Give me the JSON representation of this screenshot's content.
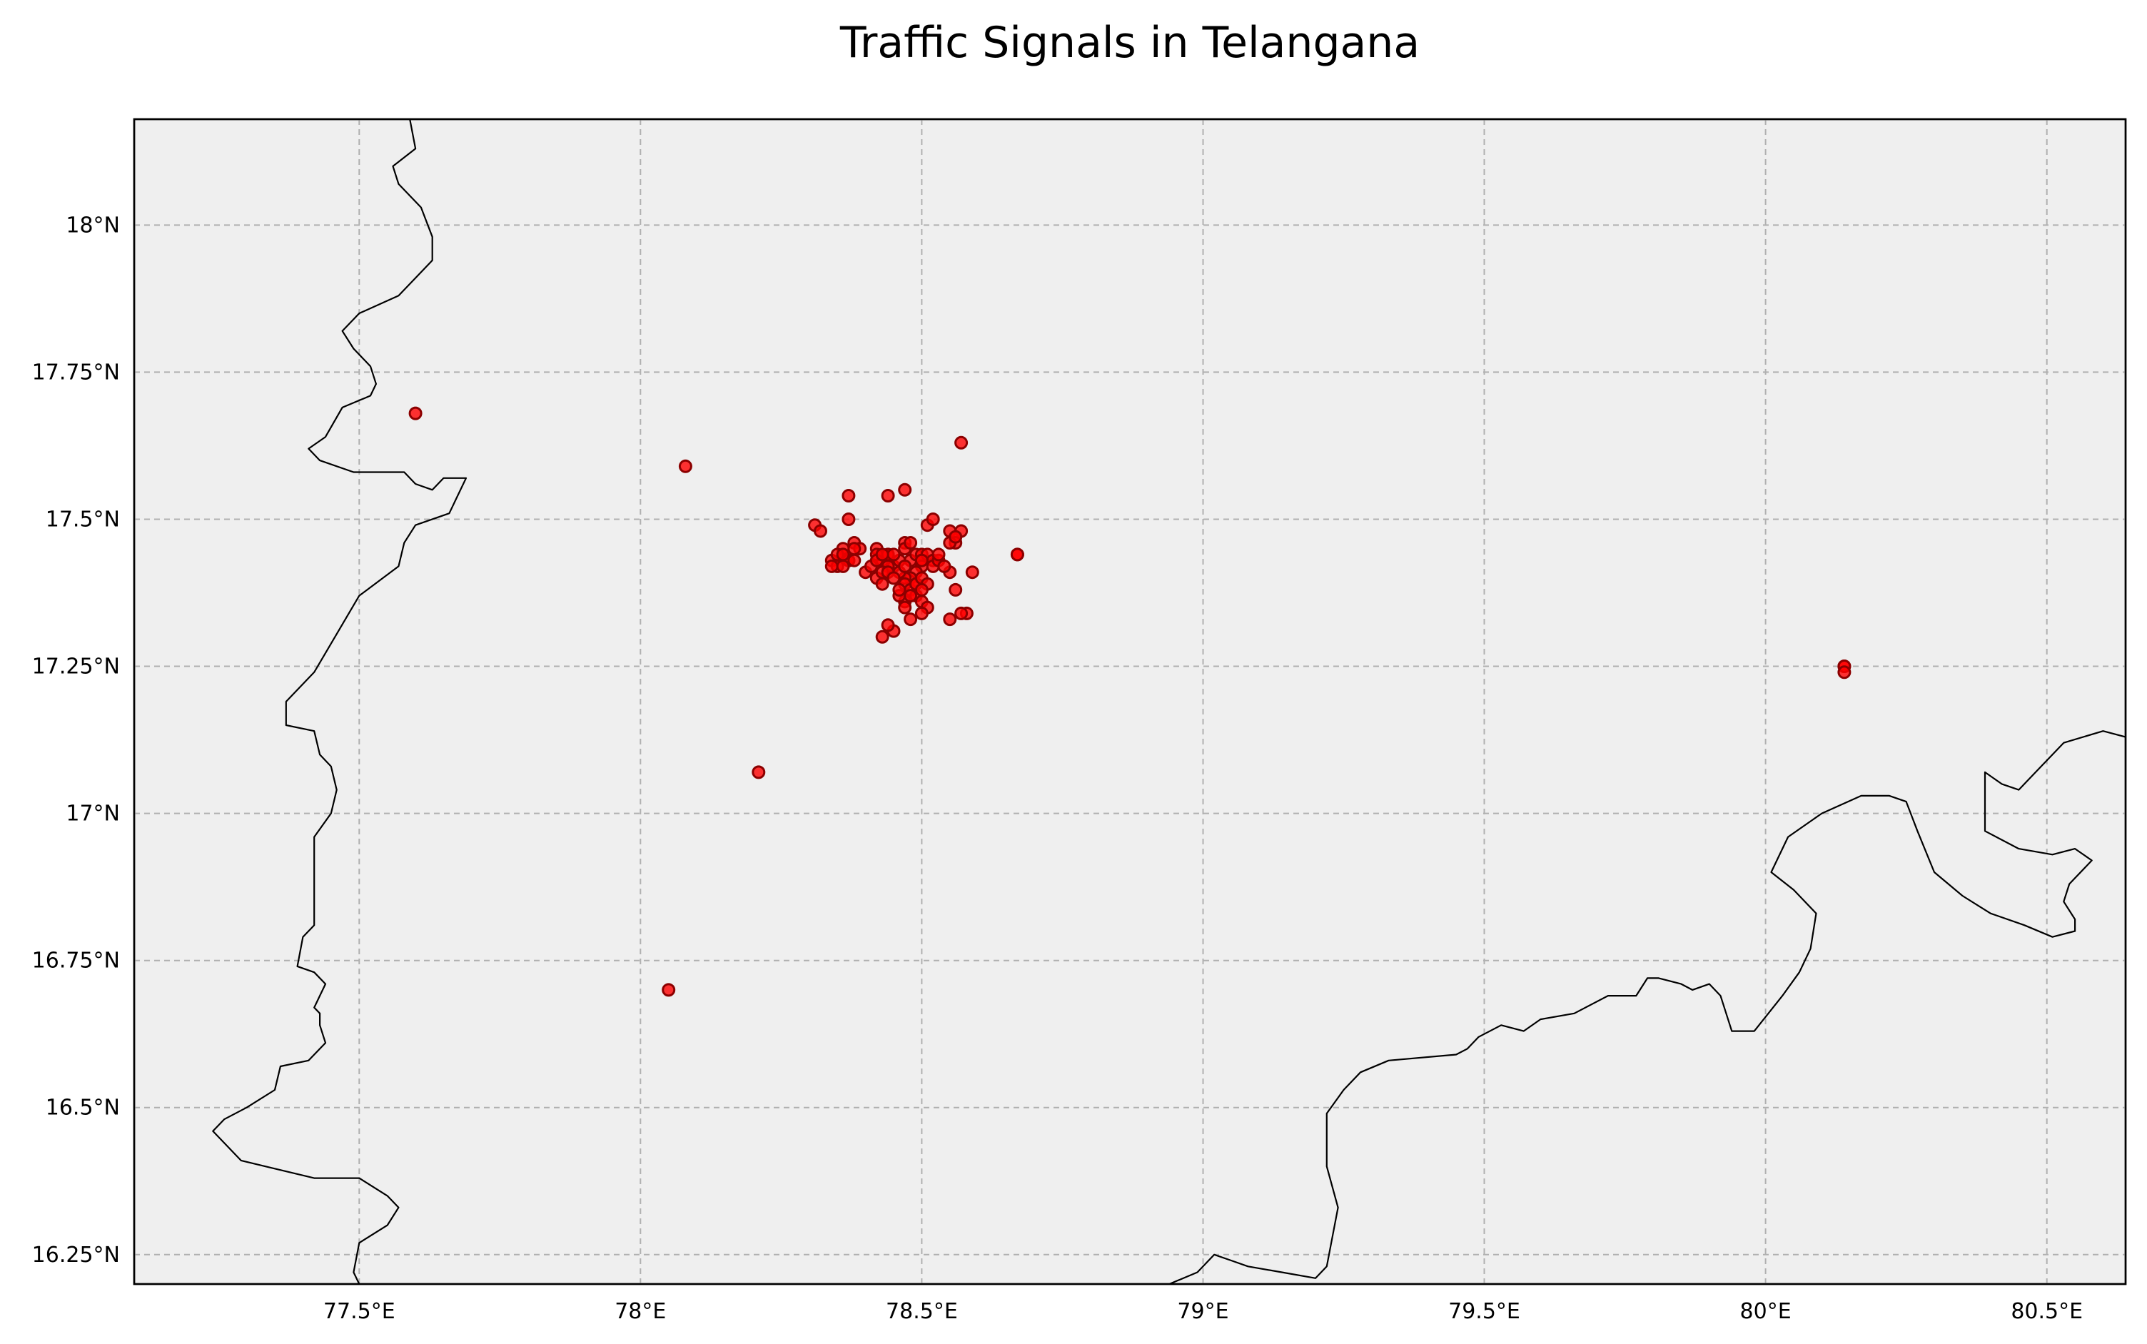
{
  "chart_data": {
    "type": "scatter",
    "title": "Traffic Signals in Telangana",
    "xlabel": "",
    "ylabel": "",
    "xlim": [
      77.1,
      80.64
    ],
    "ylim": [
      16.2,
      18.18
    ],
    "grid": true,
    "marker_color": "#ff0000",
    "marker_edge_color": "#8b0000",
    "background_color": "#efefef",
    "xticks": [
      {
        "value": 77.5,
        "label": "77.5°E"
      },
      {
        "value": 78.0,
        "label": "78°E"
      },
      {
        "value": 78.5,
        "label": "78.5°E"
      },
      {
        "value": 79.0,
        "label": "79°E"
      },
      {
        "value": 79.5,
        "label": "79.5°E"
      },
      {
        "value": 80.0,
        "label": "80°E"
      },
      {
        "value": 80.5,
        "label": "80.5°E"
      }
    ],
    "yticks": [
      {
        "value": 16.25,
        "label": "16.25°N"
      },
      {
        "value": 16.5,
        "label": "16.5°N"
      },
      {
        "value": 16.75,
        "label": "16.75°N"
      },
      {
        "value": 17.0,
        "label": "17°N"
      },
      {
        "value": 17.25,
        "label": "17.25°N"
      },
      {
        "value": 17.5,
        "label": "17.5°N"
      },
      {
        "value": 17.75,
        "label": "17.75°N"
      },
      {
        "value": 18.0,
        "label": "18°N"
      }
    ],
    "borders": [
      [
        [
          77.59,
          18.18
        ],
        [
          77.6,
          18.13
        ],
        [
          77.56,
          18.1
        ],
        [
          77.57,
          18.07
        ],
        [
          77.61,
          18.03
        ],
        [
          77.63,
          17.98
        ],
        [
          77.63,
          17.94
        ],
        [
          77.57,
          17.88
        ],
        [
          77.5,
          17.85
        ],
        [
          77.47,
          17.82
        ],
        [
          77.49,
          17.79
        ],
        [
          77.52,
          17.76
        ],
        [
          77.53,
          17.73
        ],
        [
          77.52,
          17.71
        ],
        [
          77.47,
          17.69
        ],
        [
          77.44,
          17.64
        ],
        [
          77.41,
          17.62
        ],
        [
          77.43,
          17.6
        ],
        [
          77.49,
          17.58
        ],
        [
          77.55,
          17.58
        ],
        [
          77.58,
          17.58
        ],
        [
          77.6,
          17.56
        ],
        [
          77.63,
          17.55
        ],
        [
          77.65,
          17.57
        ],
        [
          77.69,
          17.57
        ],
        [
          77.66,
          17.51
        ],
        [
          77.6,
          17.49
        ],
        [
          77.58,
          17.46
        ],
        [
          77.57,
          17.42
        ],
        [
          77.5,
          17.37
        ],
        [
          77.42,
          17.24
        ],
        [
          77.37,
          17.19
        ],
        [
          77.37,
          17.15
        ],
        [
          77.42,
          17.14
        ],
        [
          77.43,
          17.1
        ],
        [
          77.45,
          17.08
        ],
        [
          77.46,
          17.04
        ],
        [
          77.45,
          17.0
        ],
        [
          77.42,
          16.96
        ],
        [
          77.42,
          16.81
        ],
        [
          77.4,
          16.79
        ],
        [
          77.39,
          16.74
        ],
        [
          77.42,
          16.73
        ],
        [
          77.44,
          16.71
        ],
        [
          77.42,
          16.67
        ],
        [
          77.43,
          16.66
        ],
        [
          77.43,
          16.64
        ],
        [
          77.44,
          16.61
        ],
        [
          77.41,
          16.58
        ],
        [
          77.36,
          16.57
        ],
        [
          77.35,
          16.53
        ],
        [
          77.3,
          16.5
        ],
        [
          77.26,
          16.48
        ],
        [
          77.24,
          16.46
        ],
        [
          77.29,
          16.41
        ],
        [
          77.42,
          16.38
        ],
        [
          77.5,
          16.38
        ],
        [
          77.55,
          16.35
        ],
        [
          77.57,
          16.33
        ],
        [
          77.55,
          16.3
        ],
        [
          77.5,
          16.27
        ],
        [
          77.49,
          16.22
        ],
        [
          77.5,
          16.2
        ]
      ],
      [
        [
          78.94,
          16.2
        ],
        [
          78.99,
          16.22
        ],
        [
          79.02,
          16.25
        ],
        [
          79.05,
          16.24
        ],
        [
          79.08,
          16.23
        ],
        [
          79.14,
          16.22
        ],
        [
          79.2,
          16.21
        ],
        [
          79.22,
          16.23
        ],
        [
          79.24,
          16.33
        ],
        [
          79.22,
          16.4
        ],
        [
          79.22,
          16.49
        ],
        [
          79.25,
          16.53
        ],
        [
          79.28,
          16.56
        ],
        [
          79.33,
          16.58
        ],
        [
          79.45,
          16.59
        ],
        [
          79.47,
          16.6
        ],
        [
          79.49,
          16.62
        ],
        [
          79.53,
          16.64
        ],
        [
          79.57,
          16.63
        ],
        [
          79.6,
          16.65
        ],
        [
          79.66,
          16.66
        ],
        [
          79.72,
          16.69
        ],
        [
          79.77,
          16.69
        ],
        [
          79.79,
          16.72
        ],
        [
          79.81,
          16.72
        ],
        [
          79.85,
          16.71
        ],
        [
          79.87,
          16.7
        ],
        [
          79.9,
          16.71
        ],
        [
          79.92,
          16.69
        ],
        [
          79.94,
          16.63
        ],
        [
          79.98,
          16.63
        ],
        [
          80.03,
          16.69
        ],
        [
          80.06,
          16.73
        ],
        [
          80.08,
          16.77
        ],
        [
          80.09,
          16.83
        ],
        [
          80.05,
          16.87
        ],
        [
          80.01,
          16.9
        ],
        [
          80.04,
          16.96
        ],
        [
          80.1,
          17.0
        ],
        [
          80.17,
          17.03
        ],
        [
          80.22,
          17.03
        ],
        [
          80.25,
          17.02
        ],
        [
          80.27,
          16.97
        ],
        [
          80.3,
          16.9
        ],
        [
          80.35,
          16.86
        ],
        [
          80.4,
          16.83
        ],
        [
          80.46,
          16.81
        ],
        [
          80.51,
          16.79
        ],
        [
          80.55,
          16.8
        ],
        [
          80.55,
          16.82
        ],
        [
          80.53,
          16.85
        ],
        [
          80.54,
          16.88
        ],
        [
          80.58,
          16.92
        ],
        [
          80.55,
          16.94
        ],
        [
          80.51,
          16.93
        ],
        [
          80.45,
          16.94
        ],
        [
          80.39,
          16.97
        ],
        [
          80.39,
          17.0
        ],
        [
          80.39,
          17.07
        ],
        [
          80.42,
          17.05
        ],
        [
          80.45,
          17.04
        ],
        [
          80.48,
          17.07
        ],
        [
          80.53,
          17.12
        ],
        [
          80.6,
          17.14
        ],
        [
          80.64,
          17.13
        ]
      ]
    ],
    "series": [
      {
        "x": [
          77.6,
          78.08,
          78.57,
          78.21,
          78.05,
          80.14,
          80.14,
          80.14,
          78.67,
          78.67,
          78.37,
          78.44,
          78.47,
          78.31,
          78.32,
          78.37,
          78.51,
          78.52,
          78.55,
          78.57,
          78.56,
          78.59,
          78.58,
          78.57,
          78.55,
          78.56,
          78.55,
          78.56,
          78.34,
          78.35,
          78.34,
          78.36,
          78.37,
          78.36,
          78.38,
          78.39,
          78.4,
          78.41,
          78.42,
          78.43,
          78.42,
          78.43,
          78.44,
          78.45,
          78.46,
          78.47,
          78.47,
          78.48,
          78.48,
          78.49,
          78.5,
          78.5,
          78.51,
          78.52,
          78.5,
          78.49,
          78.48,
          78.47,
          78.46,
          78.47,
          78.48,
          78.49,
          78.5,
          78.51,
          78.5,
          78.49,
          78.47,
          78.46,
          78.45,
          78.44,
          78.43,
          78.44,
          78.42,
          78.43,
          78.44,
          78.45,
          78.46,
          78.48,
          78.47,
          78.48,
          78.49,
          78.5,
          78.51,
          78.52,
          78.53,
          78.54,
          78.55,
          78.56,
          78.44,
          78.42,
          78.47,
          78.5,
          78.53,
          78.45,
          78.43,
          78.37,
          78.36,
          78.35,
          78.38,
          78.38,
          78.36,
          78.5
        ],
        "y": [
          17.68,
          17.59,
          17.63,
          17.07,
          16.7,
          17.25,
          17.25,
          17.24,
          17.44,
          17.44,
          17.54,
          17.54,
          17.55,
          17.49,
          17.48,
          17.5,
          17.49,
          17.5,
          17.48,
          17.48,
          17.47,
          17.41,
          17.34,
          17.34,
          17.33,
          17.38,
          17.41,
          17.46,
          17.43,
          17.42,
          17.42,
          17.44,
          17.43,
          17.45,
          17.46,
          17.45,
          17.41,
          17.42,
          17.45,
          17.43,
          17.4,
          17.39,
          17.44,
          17.42,
          17.43,
          17.46,
          17.45,
          17.46,
          17.43,
          17.44,
          17.44,
          17.43,
          17.44,
          17.43,
          17.42,
          17.41,
          17.4,
          17.4,
          17.41,
          17.39,
          17.38,
          17.37,
          17.36,
          17.35,
          17.34,
          17.39,
          17.36,
          17.37,
          17.31,
          17.32,
          17.3,
          17.42,
          17.44,
          17.41,
          17.41,
          17.4,
          17.38,
          17.37,
          17.35,
          17.33,
          17.39,
          17.4,
          17.39,
          17.42,
          17.43,
          17.42,
          17.46,
          17.47,
          17.44,
          17.43,
          17.42,
          17.43,
          17.44,
          17.44,
          17.44,
          17.43,
          17.42,
          17.44,
          17.43,
          17.45,
          17.44,
          17.38
        ]
      }
    ]
  }
}
